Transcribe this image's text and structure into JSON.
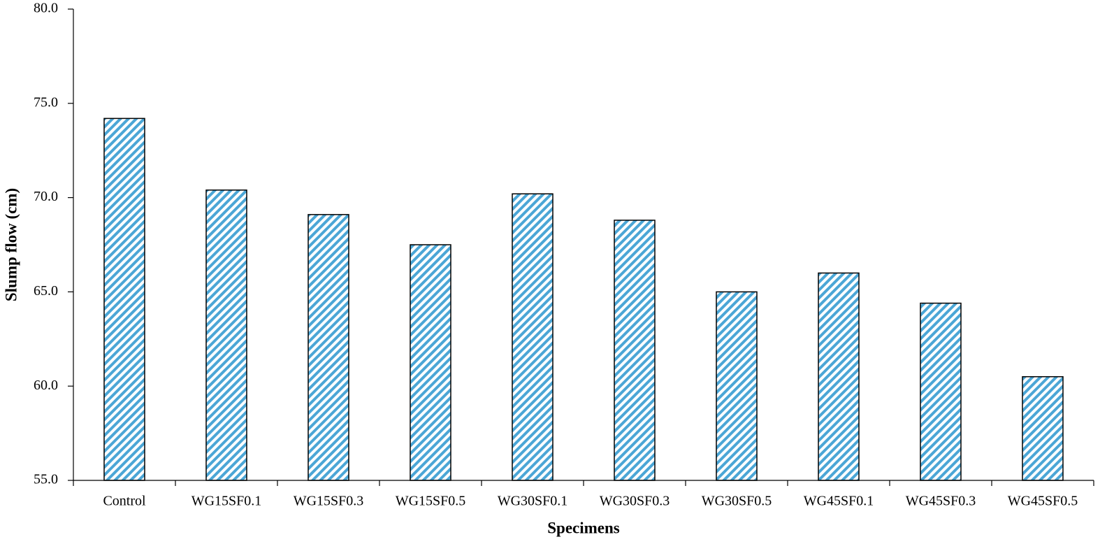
{
  "chart_data": {
    "type": "bar",
    "x_label": "Specimens",
    "y_label": "Slump flow (cm)",
    "categories": [
      "Control",
      "WG15SF0.1",
      "WG15SF0.3",
      "WG15SF0.5",
      "WG30SF0.1",
      "WG30SF0.3",
      "WG30SF0.5",
      "WG45SF0.1",
      "WG45SF0.3",
      "WG45SF0.5"
    ],
    "values": [
      74.2,
      70.4,
      69.1,
      67.5,
      70.2,
      68.8,
      65.0,
      66.0,
      64.4,
      60.5
    ],
    "color": "#4ba6d6",
    "ylim": [
      55,
      80
    ],
    "yticks": [
      {
        "value": 55,
        "label": "55.0"
      },
      {
        "value": 60,
        "label": "60.0"
      },
      {
        "value": 65,
        "label": "65.0"
      },
      {
        "value": 70,
        "label": "70.0"
      },
      {
        "value": 75,
        "label": "75.0"
      },
      {
        "value": 80,
        "label": "80.0"
      }
    ],
    "grid": false
  }
}
